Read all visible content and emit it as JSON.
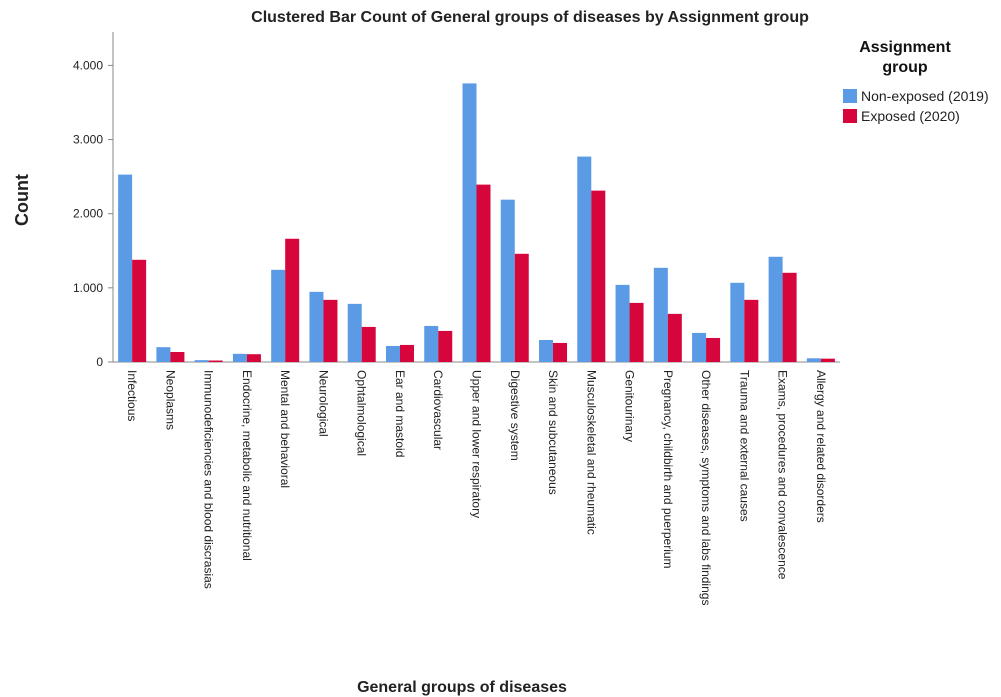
{
  "chart_data": {
    "type": "bar",
    "title": "Clustered Bar Count of General groups of diseases by Assignment group",
    "x_label": "General groups of diseases",
    "y_label": "Count",
    "legend_title": "Assignment group",
    "categories": [
      "Infectious",
      "Neoplasms",
      "Immunodeficiencies and blood discrasias",
      "Endocrine, metabolic and nutritional",
      "Mental and behavioral",
      "Neurological",
      "Ophtalmological",
      "Ear and mastoid",
      "Cardiovascular",
      "Upper and lower respiratory",
      "Digestive system",
      "Skin and subcutaneous",
      "Musculoskeletal and rheumatic",
      "Genitourinary",
      "Pregnancy, childbirth and puerperium",
      "Other diseases, symptoms and labs findings",
      "Trauma and external causes",
      "Exams, procedures and convalescence",
      "Allergy and related disorders"
    ],
    "series": [
      {
        "name": "Non-exposed (2019)",
        "color": "#5b9be6",
        "values": [
          2527,
          200,
          25,
          110,
          1243,
          946,
          784,
          216,
          486,
          3757,
          2189,
          297,
          2770,
          1040,
          1270,
          392,
          1068,
          1419,
          50
        ]
      },
      {
        "name": "Exposed (2020)",
        "color": "#d6053c",
        "values": [
          1378,
          135,
          20,
          105,
          1662,
          838,
          473,
          230,
          419,
          2392,
          1459,
          257,
          2311,
          797,
          649,
          324,
          838,
          1203,
          45
        ]
      }
    ],
    "ylim": [
      0,
      4450
    ],
    "yticks": [
      0,
      {
        "value": 1000,
        "label": "1.000"
      },
      {
        "value": 2000,
        "label": "2.000"
      },
      {
        "value": 3000,
        "label": "3.000"
      },
      {
        "value": 4000,
        "label": "4.000"
      }
    ]
  }
}
